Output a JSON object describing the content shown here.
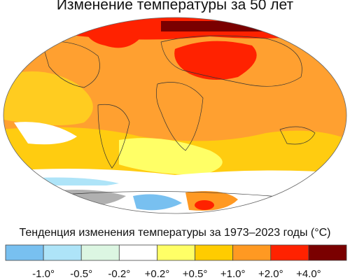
{
  "title": "Изменение температуры за 50 лет",
  "legend": {
    "label": "Тенденция изменения температуры за 1973–2023 годы (°C)",
    "colors": [
      "#78c0f0",
      "#aee4f8",
      "#dcf6e2",
      "#ffffff",
      "#ffff66",
      "#ffcc00",
      "#ff9922",
      "#ff2200",
      "#7a0000"
    ],
    "ticks": [
      "-1.0°",
      "-0.5°",
      "-0.2°",
      "+0.2°",
      "+0.5°",
      "+1.0°",
      "+2.0°",
      "+4.0°"
    ]
  }
}
